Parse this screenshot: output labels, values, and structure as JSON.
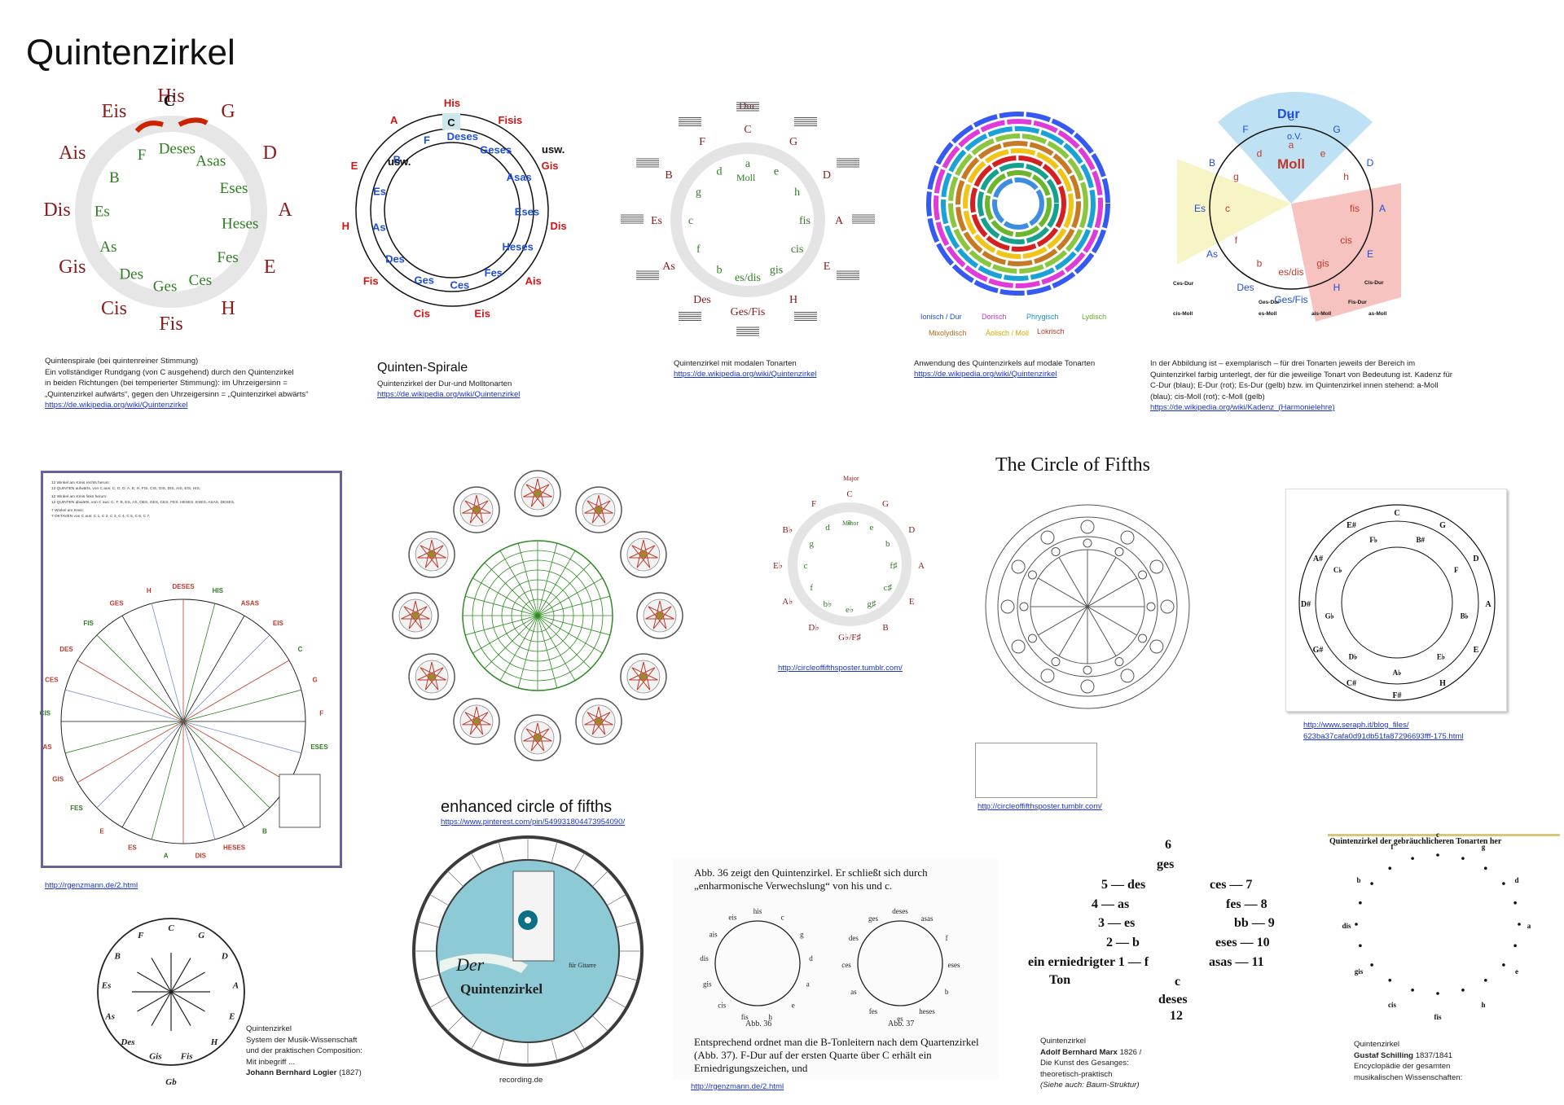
{
  "page": {
    "title": "Quintenzirkel"
  },
  "fig1": {
    "outer_ring": [
      "His",
      "G",
      "D",
      "A",
      "E",
      "H",
      "Fis",
      "Cis",
      "Gis",
      "Dis",
      "Ais",
      "Eis"
    ],
    "inner_ring": [
      "C",
      "Deses",
      "Asas",
      "Eses",
      "Heses",
      "Fes",
      "Ces",
      "Ges",
      "Des",
      "As",
      "Es",
      "B",
      "F"
    ],
    "caption_lines": [
      "Quintenspirale (bei quintenreiner Stimmung)",
      "Ein vollständiger Rundgang (von C ausgehend) durch den Quintenzirkel",
      "in beiden Richtungen (bei temperierter Stimmung): im Uhrzeigersinn =",
      "„Quintenzirkel aufwärts“, gegen den Uhrzeigersinn = „Quintenzirkel abwärts“"
    ],
    "link": "https://de.wikipedia.org/wiki/Quintenzirkel"
  },
  "fig2": {
    "title": "Quinten-Spirale",
    "subtitle": "Quintenzirkel der Dur-und Molltonarten",
    "link": "https://de.wikipedia.org/wiki/Quintenzirkel",
    "outer": [
      "His",
      "Fisis",
      "Gis",
      "Dis",
      "Ais",
      "Eis",
      "Cis",
      "Fis",
      "H",
      "E",
      "A"
    ],
    "usw": "usw.",
    "blue": [
      "C",
      "Deses",
      "Geses",
      "Asas",
      "Eses",
      "Heses",
      "Fes",
      "Ces",
      "Ges",
      "Des",
      "As",
      "Es",
      "B",
      "F"
    ]
  },
  "fig3": {
    "top": "Dur",
    "inner": "Moll",
    "caption": "Quintenzirkel mit modalen Tonarten",
    "link": "https://de.wikipedia.org/wiki/Quintenzirkel",
    "labels": [
      "C",
      "G",
      "D",
      "A",
      "E",
      "H",
      "Ges/Fis",
      "Des",
      "As",
      "Es",
      "B",
      "F",
      "a",
      "e",
      "h",
      "fis",
      "cis",
      "gis",
      "es/dis",
      "b",
      "f",
      "c",
      "g",
      "d"
    ]
  },
  "fig4": {
    "caption": "Anwendung des Quintenzirkels auf modale Tonarten",
    "link": "https://de.wikipedia.org/wiki/Quintenzirkel",
    "legend": [
      "Ionisch / Dur",
      "Dorisch",
      "Phrygisch",
      "Lydisch",
      "Mixolydisch",
      "Äolisch / Moll",
      "Lokrisch"
    ]
  },
  "fig5": {
    "top": "Dur",
    "ov": "o.V.",
    "moll": "Moll",
    "labels": [
      "F",
      "C",
      "G",
      "B",
      "D",
      "Es",
      "A",
      "As",
      "E",
      "Des",
      "Ges/Fis",
      "H",
      "es/dis",
      "gis",
      "cis",
      "fis",
      "h",
      "e",
      "a",
      "d",
      "g",
      "c",
      "f",
      "b"
    ],
    "bottom_labels": [
      "Ces-Dur",
      "Ges-Dur",
      "Fis-Dur",
      "Cis-Dur",
      "cis-Moll",
      "es-Moll",
      "as-Moll",
      "ais-Moll"
    ],
    "caption": "In der Abbildung ist – exemplarisch – für drei Tonarten jeweils der Bereich im Quintenzirkel farbig unterlegt, der für die jeweilige Tonart von Bedeutung ist. Kadenz für C-Dur (blau); E-Dur (rot); Es-Dur (gelb) bzw. im Quintenzirkel innen stehend: a-Moll (blau); cis-Moll (rot); c-Moll (gelb)",
    "link": "https://de.wikipedia.org/wiki/Kadenz_(Harmonielehre)"
  },
  "fig6": {
    "link": "http://rgenzmann.de/2.html",
    "labels": [
      "DESES",
      "HIS",
      "ASAS",
      "EIS",
      "C",
      "G",
      "F",
      "ESES",
      "AIS",
      "D",
      "B",
      "HESES",
      "DIS",
      "A",
      "ES",
      "E",
      "FES",
      "GIS",
      "AS",
      "CIS",
      "CES",
      "DES",
      "FIS",
      "GES",
      "H"
    ],
    "legend_lines": [
      "12 Winkel am Kreis rechts herum:",
      "12 QUINTEN aufwärts, von C aus: C, G, D, A, E, H, FIS, CIS, GIS, DIS, AIS, EIS, HIS,",
      "12 Winkel am Kreis links herum:",
      "12 QUINTEN abwärts, von C aus: C, F, B, ES, AS, DES, GES, CES, FES, HESES, ESES, ASAS, DESES,",
      "7 Winkel am Kreis:",
      "7 OKTAVEN von C aus: C 1, C 2, C 3, C 4, C 5, C 6, C 7,"
    ]
  },
  "fig7": {
    "title": "enhanced circle of fifths",
    "link": "https://www.pinterest.com/pin/549931804473954090/"
  },
  "fig8": {
    "top": "Major",
    "inner": "Minor",
    "link": "http://circleoffifthsposter.tumblr.com/",
    "labels": [
      "C",
      "G",
      "D",
      "A",
      "E",
      "B",
      "G♭/F♯",
      "D♭",
      "A♭",
      "E♭",
      "B♭",
      "F",
      "a",
      "e",
      "b",
      "f♯",
      "c♯",
      "g♯",
      "e♭",
      "b♭",
      "f",
      "c",
      "g",
      "d"
    ]
  },
  "fig9": {
    "title": "The Circle of Fifths",
    "link": "http://circleoffifthsposter.tumblr.com/"
  },
  "fig10": {
    "link_line1": "http://www.seraph.it/blog_files/",
    "link_line2": "623ba37cafa0d91db51fa87296693fff-175.html"
  },
  "fig11": {
    "caption_lines": [
      "Quintenzirkel",
      "System der Musik-Wissenschaft",
      "und der praktischen Composition:",
      "Mit inbegriff ..."
    ],
    "author": "Johann Bernhard Logier",
    "year": "(1827)",
    "labels": [
      "C",
      "G",
      "D",
      "A",
      "E",
      "H",
      "Fis",
      "Gis",
      "Des",
      "As",
      "Es",
      "B",
      "F",
      "Gb"
    ]
  },
  "fig12": {
    "brand_top": "Der",
    "brand_main": "Quintenzirkel",
    "sub": "für Gitarre",
    "caption": "recording.de"
  },
  "fig13": {
    "text_top": "Abb. 36 zeigt den Quintenzirkel. Er schließt sich durch „enharmonische Verwechslung“ von his und c.",
    "text_bottom": "Entsprechend ordnet man die B-Tonleitern nach dem Quartenzirkel (Abb. 37). F-Dur auf der ersten Quarte über C erhält ein Erniedrigungszeichen, und",
    "abb36": "Abb. 36",
    "abb37": "Abb. 37",
    "c36": [
      "his",
      "c",
      "g",
      "d",
      "a",
      "e",
      "h",
      "fis",
      "cis",
      "gis",
      "dis",
      "ais",
      "eis"
    ],
    "c37": [
      "deses",
      "asas",
      "f",
      "eses",
      "b",
      "heses",
      "es",
      "fes",
      "as",
      "ces",
      "des",
      "ges"
    ],
    "link": "http://rgenzmann.de/2.html"
  },
  "fig14": {
    "rows": [
      "6",
      "ges",
      "5 — des",
      "ces — 7",
      "4 — as",
      "fes — 8",
      "3 — es",
      "bb — 9",
      "2 — b",
      "eses — 10",
      "ein erniedrigter  1 — f",
      "asas — 11",
      "Ton",
      "c",
      "deses",
      "12"
    ],
    "caption": "Quintenzirkel",
    "author": "Adolf Bernhard Marx",
    "year": "1826 /",
    "book": "Die Kunst des Gesanges:",
    "book2": "theoretisch-praktisch",
    "note": "(Siehe auch: Baum-Struktur)"
  },
  "fig15": {
    "header": "Quintenzirkel der gebräuchlicheren Tonarten her",
    "caption": "Quintenzirkel",
    "author": "Gustaf Schilling",
    "year": "1837/1841",
    "book": "Encyclopädie der gesamten",
    "book2": "musikalischen Wissenschaften:"
  },
  "colors": {
    "maj": "#8b1a1a",
    "min": "#2e7d22",
    "blue": "#1f4fd8",
    "red": "#d41414",
    "link": "#1a33c8"
  }
}
